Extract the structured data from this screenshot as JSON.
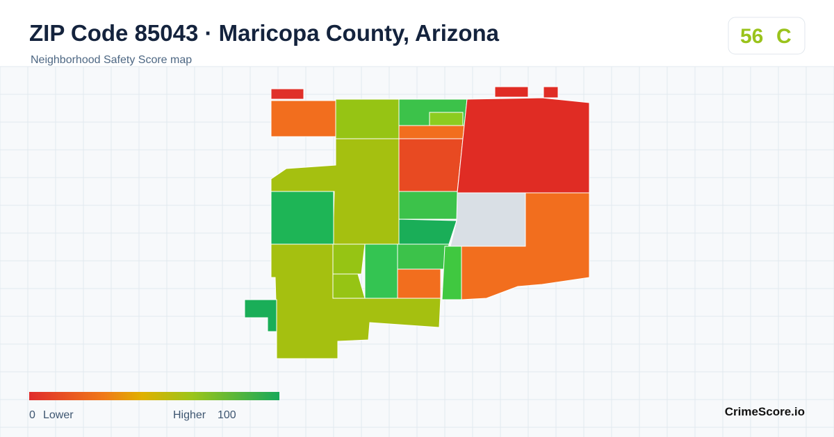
{
  "header": {
    "title": "ZIP Code 85043 · Maricopa County, Arizona",
    "subtitle": "Neighborhood Safety Score map"
  },
  "score_badge": {
    "score": "56",
    "grade": "C"
  },
  "legend": {
    "min": "0",
    "min_label": "Lower",
    "max_label": "Higher",
    "max": "100"
  },
  "brand": "CrimeScore.io"
}
